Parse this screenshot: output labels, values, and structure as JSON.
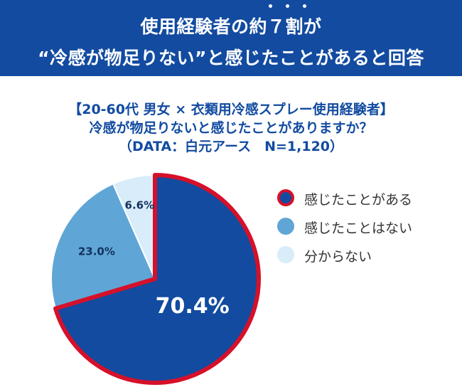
{
  "banner": {
    "line1": "使用経験者の約７割が",
    "line2": "“冷感が物足りない”と感じたことがあると回答",
    "emphasis_dots": 3
  },
  "subtitle": {
    "line1": "【20-60代 男女 × 衣類用冷感スプレー使用経験者】",
    "line2": "冷感が物足りないと感じたことがありますか？",
    "line3": "（DATA：白元アース　N=1,120）"
  },
  "colors": {
    "banner": "#124ba0",
    "text_blue": "#124ba0",
    "border_red": "#d6102a"
  },
  "chart_data": {
    "type": "pie",
    "title": "冷感が物足りないと感じたことがありますか？",
    "start_angle_deg": 0,
    "direction": "clockwise",
    "legend_position": "right",
    "slices": [
      {
        "label": "感じたことがある",
        "value": 70.4,
        "display": "70.4%",
        "color": "#124ba0",
        "border": "#d6102a"
      },
      {
        "label": "感じたことはない",
        "value": 23.0,
        "display": "23.0%",
        "color": "#5fa6d6"
      },
      {
        "label": "分からない",
        "value": 6.6,
        "display": "6.6%",
        "color": "#d8ecfa"
      }
    ]
  }
}
